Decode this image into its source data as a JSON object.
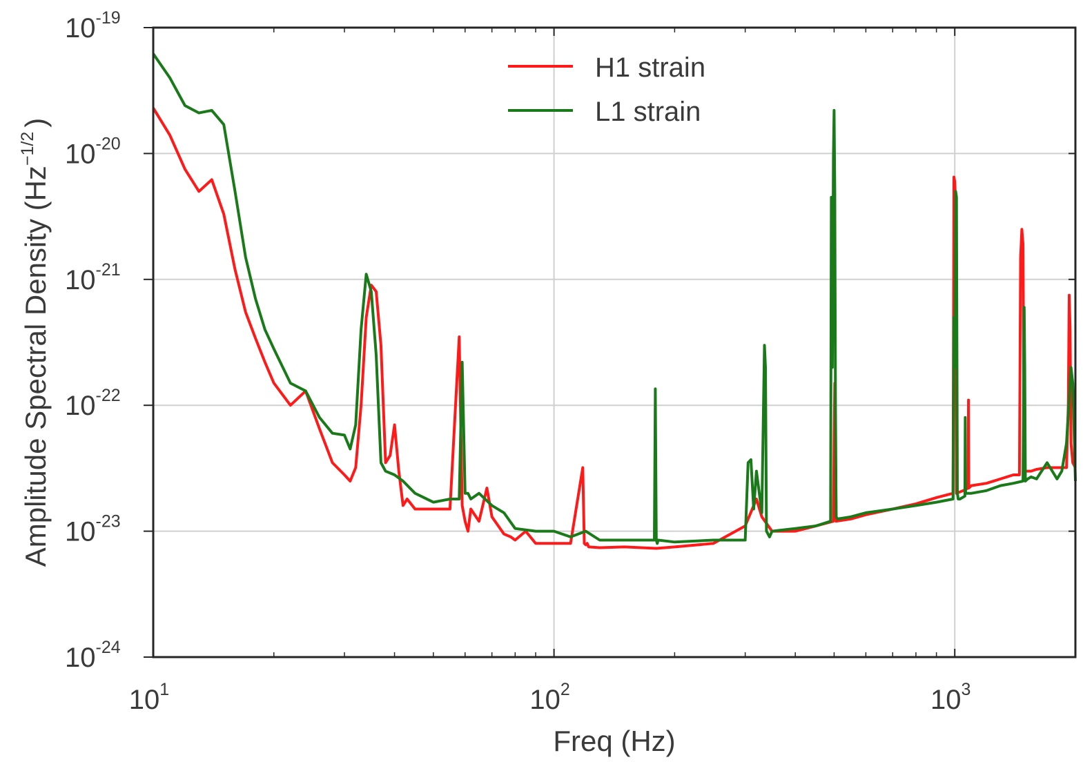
{
  "chart_data": {
    "type": "line",
    "xlabel": "Freq (Hz)",
    "ylabel_text": "Amplitude Spectral Density (Hz",
    "ylabel_exp": "−1/2",
    "ylabel_close": ")",
    "x_scale": "log",
    "y_scale": "log",
    "xlim": [
      10,
      2000
    ],
    "ylim": [
      1e-24,
      1e-19
    ],
    "grid": true,
    "legend_position": "top-center",
    "x_ticks": [
      {
        "base": "10",
        "exp": "1",
        "value": 10
      },
      {
        "base": "10",
        "exp": "2",
        "value": 100
      },
      {
        "base": "10",
        "exp": "3",
        "value": 1000
      }
    ],
    "y_ticks": [
      {
        "base": "10",
        "exp": "-19",
        "value": 1e-19
      },
      {
        "base": "10",
        "exp": "-20",
        "value": 1e-20
      },
      {
        "base": "10",
        "exp": "-21",
        "value": 1e-21
      },
      {
        "base": "10",
        "exp": "-22",
        "value": 1e-22
      },
      {
        "base": "10",
        "exp": "-23",
        "value": 1e-23
      },
      {
        "base": "10",
        "exp": "-24",
        "value": 1e-24
      }
    ],
    "series": [
      {
        "name": "H1 strain",
        "color": "#ff1a1a",
        "x": [
          10,
          11,
          12,
          13,
          14,
          15,
          16,
          17,
          18,
          19,
          20,
          22,
          24,
          26,
          28,
          30,
          31,
          32,
          33,
          34,
          35,
          36,
          37,
          38,
          39,
          40,
          41,
          42,
          43,
          45,
          50,
          55,
          58,
          59,
          60,
          61,
          62,
          65,
          68,
          70,
          75,
          78,
          80,
          85,
          90,
          100,
          110,
          118,
          119,
          120,
          121,
          122,
          130,
          150,
          180,
          200,
          250,
          300,
          320,
          330,
          350,
          400,
          450,
          498,
          500,
          502,
          504,
          506,
          550,
          600,
          700,
          800,
          900,
          990,
          995,
          1000,
          1005,
          1010,
          1050,
          1080,
          1082,
          1084,
          1100,
          1200,
          1300,
          1400,
          1450,
          1460,
          1470,
          1480,
          1490,
          1500,
          1550,
          1600,
          1700,
          1800,
          1900,
          1920,
          1930,
          1940,
          1950,
          1970,
          2000
        ],
        "y": [
          2.3e-20,
          1.4e-20,
          7.5e-21,
          5e-21,
          6.2e-21,
          3.3e-21,
          1.2e-21,
          5.5e-22,
          3.4e-22,
          2.2e-22,
          1.5e-22,
          1e-22,
          1.3e-22,
          6.5e-23,
          3.5e-23,
          2.8e-23,
          2.5e-23,
          3.2e-23,
          1e-22,
          5e-22,
          9e-22,
          8e-22,
          3e-22,
          3.5e-23,
          4e-23,
          7e-23,
          3e-23,
          1.6e-23,
          1.8e-23,
          1.5e-23,
          1.5e-23,
          1.5e-23,
          3.5e-22,
          1.6e-23,
          1.2e-23,
          1e-23,
          1.5e-23,
          1.2e-23,
          2.2e-23,
          1.3e-23,
          9.5e-24,
          9e-24,
          8.5e-24,
          1e-23,
          8e-24,
          8e-24,
          8e-24,
          3.2e-23,
          8e-24,
          7.8e-24,
          8e-24,
          7.5e-24,
          7.4e-24,
          7.5e-24,
          7.3e-24,
          7.5e-24,
          8e-24,
          1.1e-23,
          1.8e-23,
          1.3e-23,
          1e-23,
          1e-23,
          1.1e-23,
          1.2e-23,
          5e-23,
          1.5e-22,
          4e-23,
          1.2e-23,
          1.25e-23,
          1.35e-23,
          1.5e-23,
          1.65e-23,
          1.85e-23,
          2e-23,
          6.5e-21,
          6e-21,
          4e-21,
          2e-23,
          2.1e-23,
          2.2e-23,
          1.1e-22,
          2.2e-23,
          2.3e-23,
          2.4e-23,
          2.6e-23,
          2.8e-23,
          2.8e-23,
          1.5e-21,
          2.5e-21,
          1.9e-21,
          3e-23,
          3e-23,
          3e-23,
          3.1e-23,
          3.2e-23,
          3.2e-23,
          3.2e-23,
          1e-22,
          7.5e-22,
          4e-22,
          5e-23,
          3.5e-23,
          3.2e-23
        ]
      },
      {
        "name": "L1 strain",
        "color": "#1a7a1a",
        "x": [
          10,
          11,
          12,
          13,
          14,
          15,
          16,
          17,
          18,
          19,
          20,
          22,
          24,
          26,
          28,
          30,
          31,
          32,
          33,
          34,
          35,
          36,
          37,
          38,
          40,
          42,
          45,
          50,
          55,
          58,
          59,
          60,
          61,
          62,
          65,
          70,
          75,
          80,
          90,
          100,
          110,
          120,
          130,
          150,
          178,
          179,
          180,
          181,
          182,
          200,
          250,
          300,
          305,
          310,
          315,
          320,
          330,
          335,
          337,
          339,
          345,
          350,
          400,
          450,
          490,
          492,
          495,
          498,
          500,
          502,
          504,
          506,
          510,
          550,
          600,
          700,
          800,
          900,
          990,
          995,
          1000,
          1005,
          1010,
          1015,
          1020,
          1030,
          1060,
          1062,
          1064,
          1100,
          1200,
          1300,
          1400,
          1480,
          1485,
          1490,
          1495,
          1500,
          1520,
          1550,
          1600,
          1700,
          1800,
          1850,
          1900,
          1950,
          1970,
          2000
        ],
        "y": [
          6.2e-20,
          4e-20,
          2.4e-20,
          2.1e-20,
          2.2e-20,
          1.7e-20,
          5e-21,
          1.5e-21,
          7e-22,
          4e-22,
          2.8e-22,
          1.5e-22,
          1.3e-22,
          8e-23,
          6e-23,
          5.8e-23,
          4.5e-23,
          7e-23,
          4e-22,
          1.1e-21,
          8e-22,
          2.5e-22,
          3.5e-23,
          3e-23,
          2.8e-23,
          2.5e-23,
          2e-23,
          1.7e-23,
          1.8e-23,
          1.8e-23,
          2.2e-22,
          2e-23,
          2e-23,
          1.8e-23,
          2e-23,
          1.6e-23,
          1.4e-23,
          1.05e-23,
          1e-23,
          1e-23,
          9e-24,
          1e-23,
          8.5e-24,
          8.5e-24,
          8.5e-24,
          1.35e-22,
          8.5e-24,
          8e-24,
          8.5e-24,
          8.2e-24,
          8.5e-24,
          8.5e-24,
          3.5e-23,
          3.7e-23,
          1.5e-23,
          3e-23,
          1.4e-23,
          3e-22,
          2e-22,
          1e-23,
          9e-24,
          1e-23,
          1.05e-23,
          1.1e-23,
          1.2e-23,
          4.5e-21,
          2e-22,
          9.5e-21,
          2.2e-20,
          5e-21,
          1e-22,
          1.3e-23,
          1.25e-23,
          1.3e-23,
          1.4e-23,
          1.5e-23,
          1.6e-23,
          1.7e-23,
          1.8e-23,
          5e-22,
          2e-22,
          5e-21,
          4.5e-21,
          2e-23,
          1.8e-23,
          1.8e-23,
          1.9e-23,
          8e-23,
          2e-23,
          2e-23,
          2.1e-23,
          2.3e-23,
          2.4e-23,
          2.5e-23,
          1e-22,
          6e-22,
          2e-22,
          2.5e-23,
          2.6e-23,
          2.7e-23,
          2.6e-23,
          3.5e-23,
          2.6e-23,
          3e-23,
          5e-23,
          2e-22,
          1.5e-22,
          2.5e-23
        ]
      }
    ]
  }
}
